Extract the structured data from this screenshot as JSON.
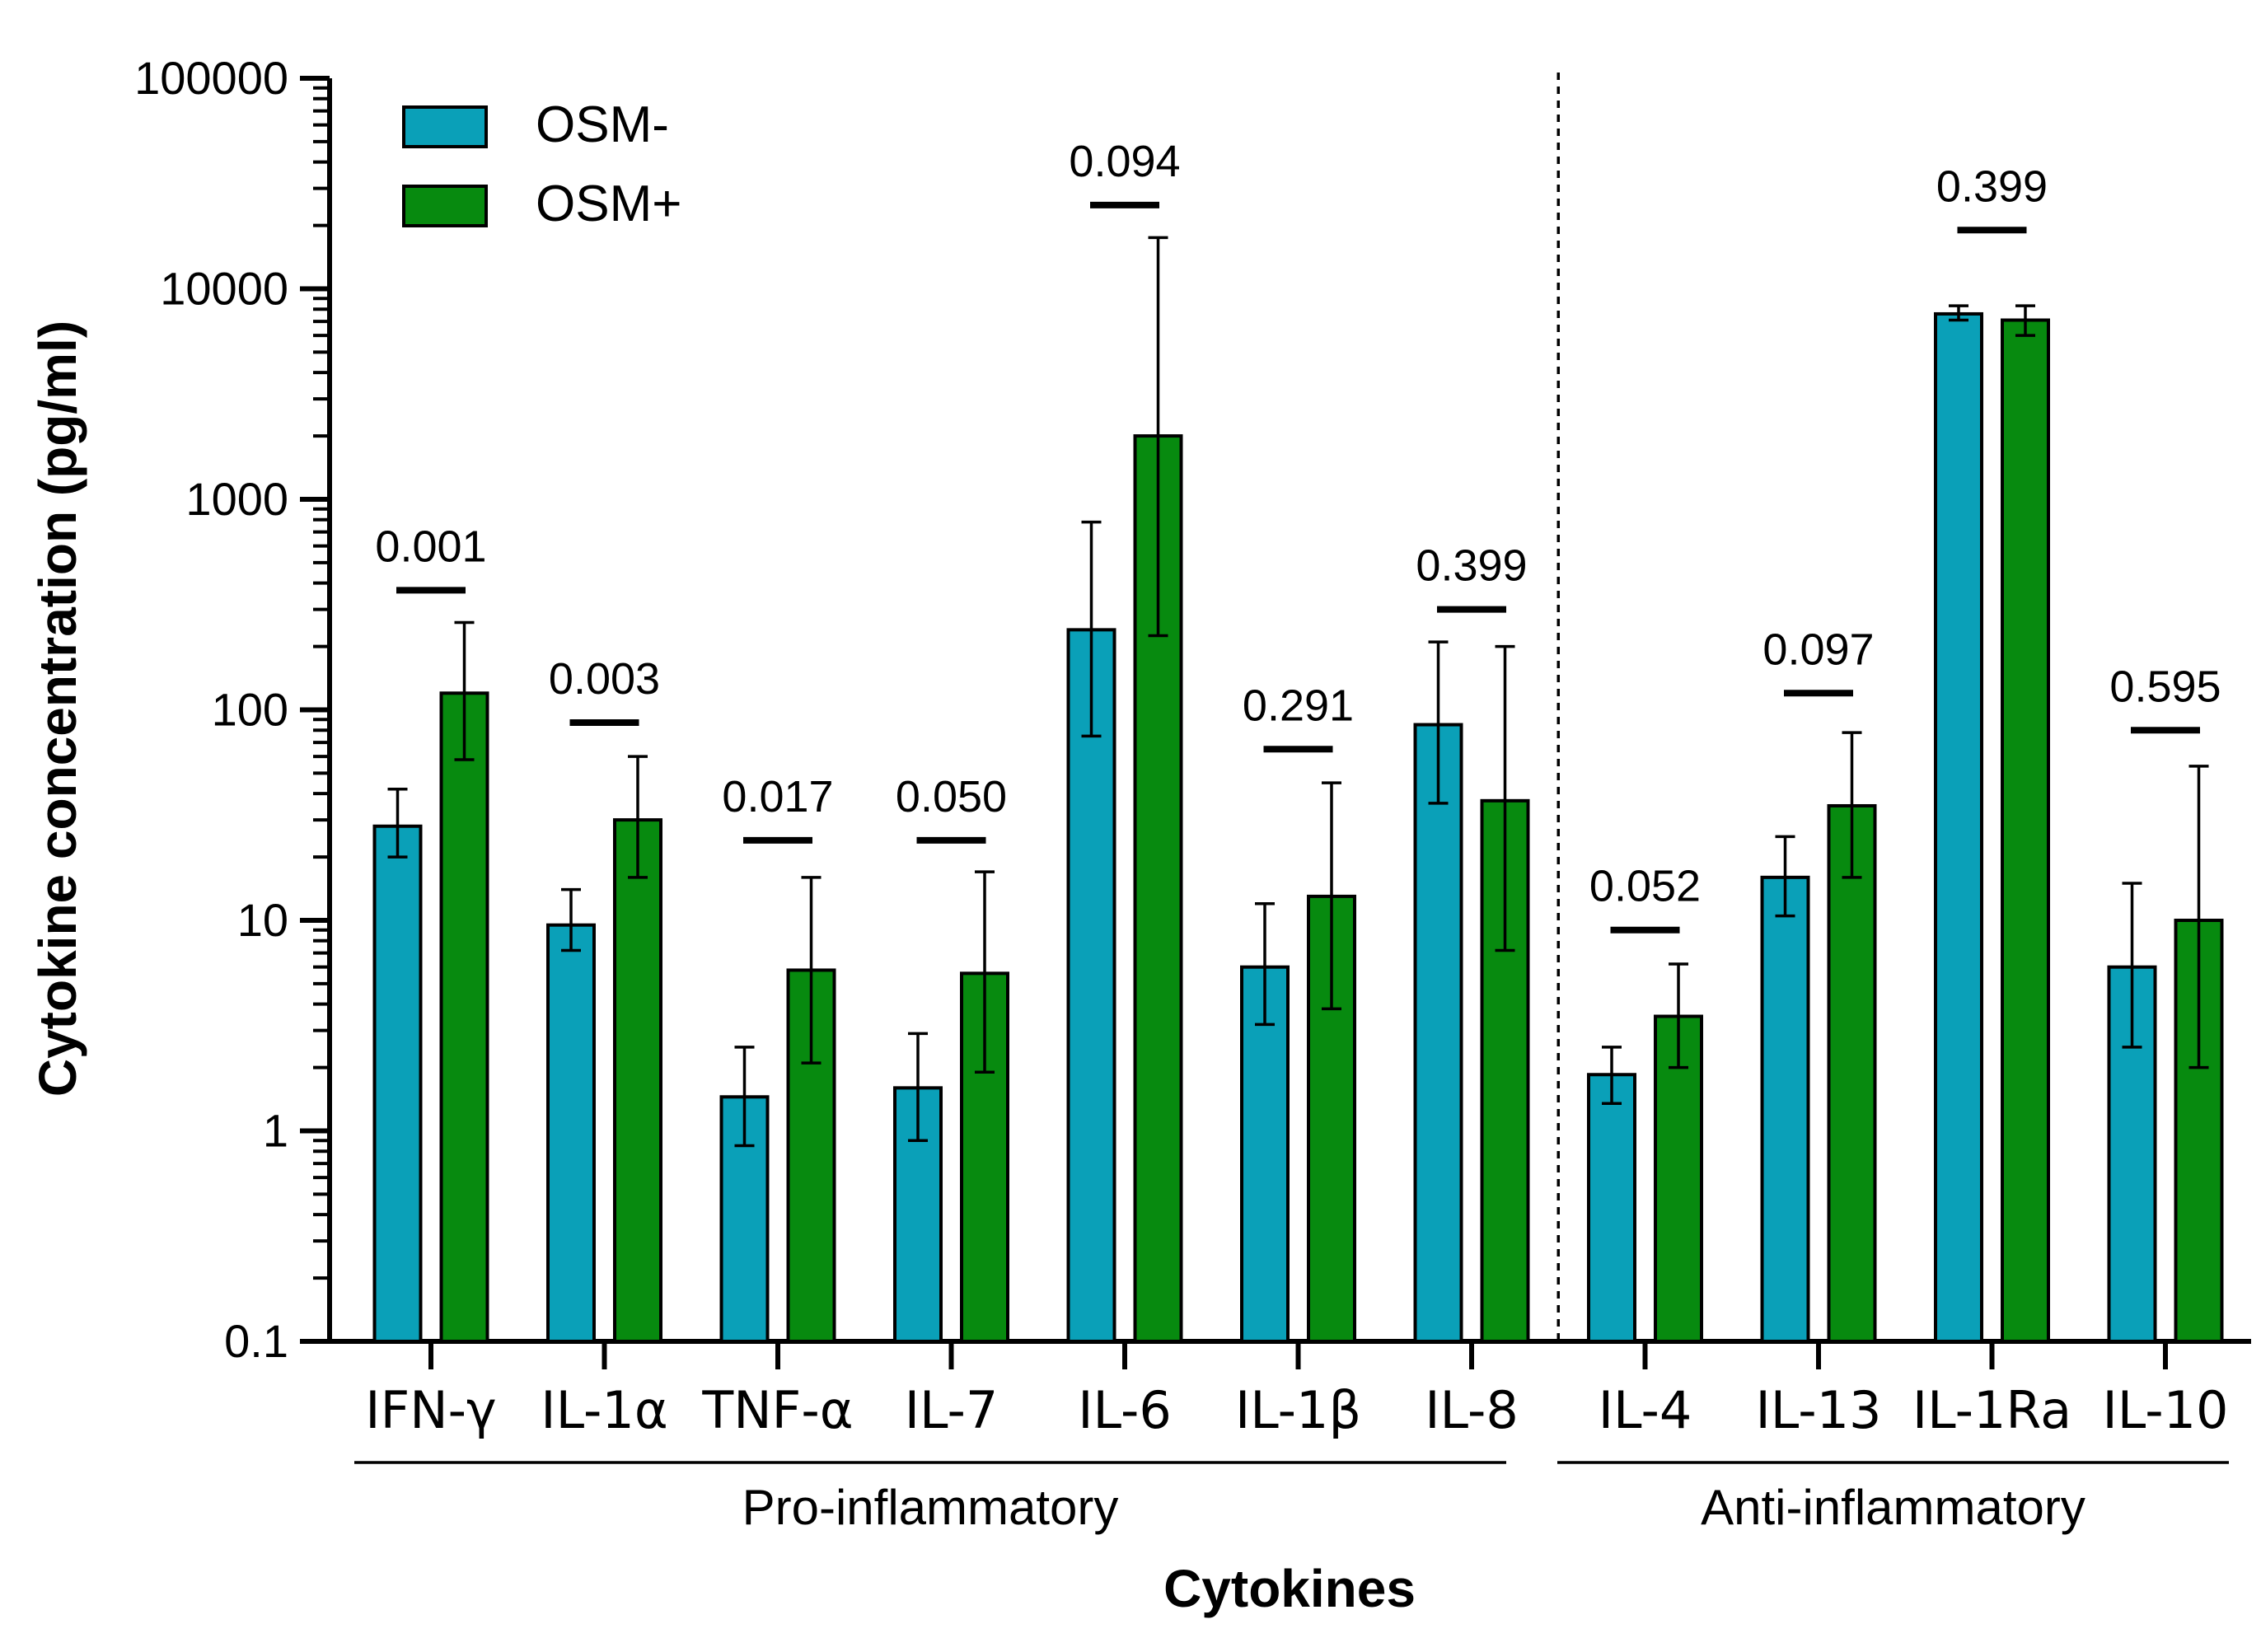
{
  "chart_data": {
    "type": "bar",
    "yscale": "log",
    "ylim": [
      0.1,
      100000
    ],
    "yticks": [
      {
        "value": 0.1,
        "label": "0.1"
      },
      {
        "value": 1,
        "label": "1"
      },
      {
        "value": 10,
        "label": "10"
      },
      {
        "value": 100,
        "label": "100"
      },
      {
        "value": 1000,
        "label": "1000"
      },
      {
        "value": 10000,
        "label": "10000"
      },
      {
        "value": 100000,
        "label": "100000"
      }
    ],
    "xlabel": "Cytokines",
    "ylabel": "Cytokine concentration  (pg/ml)",
    "legend_position": "top-left",
    "categories": [
      "IFN-γ",
      "IL-1α",
      "TNF-α",
      "IL-7",
      "IL-6",
      "IL-1β",
      "IL-8",
      "IL-4",
      "IL-13",
      "IL-1Ra",
      "IL-10"
    ],
    "series": [
      {
        "name": "OSM-",
        "color": "#0aa0b8",
        "values": [
          28,
          9.5,
          1.45,
          1.6,
          240,
          6,
          85,
          1.85,
          16,
          7600,
          6
        ],
        "err_low": [
          20,
          7.2,
          0.85,
          0.9,
          75,
          3.2,
          36,
          1.35,
          10.5,
          7100,
          2.5
        ],
        "err_high": [
          42,
          14,
          2.5,
          2.9,
          780,
          12,
          210,
          2.5,
          25,
          8300,
          15
        ]
      },
      {
        "name": "OSM+",
        "color": "#078a0f",
        "values": [
          120,
          30,
          5.8,
          5.6,
          2000,
          13,
          37,
          3.5,
          35,
          7100,
          10
        ],
        "err_low": [
          58,
          16,
          2.1,
          1.9,
          225,
          3.8,
          7.2,
          2.0,
          16,
          6000,
          2.0
        ],
        "err_high": [
          260,
          60,
          16,
          17,
          17500,
          45,
          200,
          6.2,
          78,
          8300,
          54
        ]
      }
    ],
    "p_values": [
      {
        "label": "0.001",
        "level": 370
      },
      {
        "label": "0.003",
        "level": 87
      },
      {
        "label": "0.017",
        "level": 24
      },
      {
        "label": "0.050",
        "level": 24
      },
      {
        "label": "0.094",
        "level": 25000
      },
      {
        "label": "0.291",
        "level": 65
      },
      {
        "label": "0.399",
        "level": 300
      },
      {
        "label": "0.052",
        "level": 9
      },
      {
        "label": "0.097",
        "level": 120
      },
      {
        "label": "0.399",
        "level": 19000
      },
      {
        "label": "0.595",
        "level": 80
      }
    ],
    "groups": [
      {
        "label": "Pro-inflammatory",
        "from": 0,
        "to": 6
      },
      {
        "label": "Anti-inflammatory",
        "from": 7,
        "to": 10
      }
    ],
    "divider_after_category": 6
  }
}
